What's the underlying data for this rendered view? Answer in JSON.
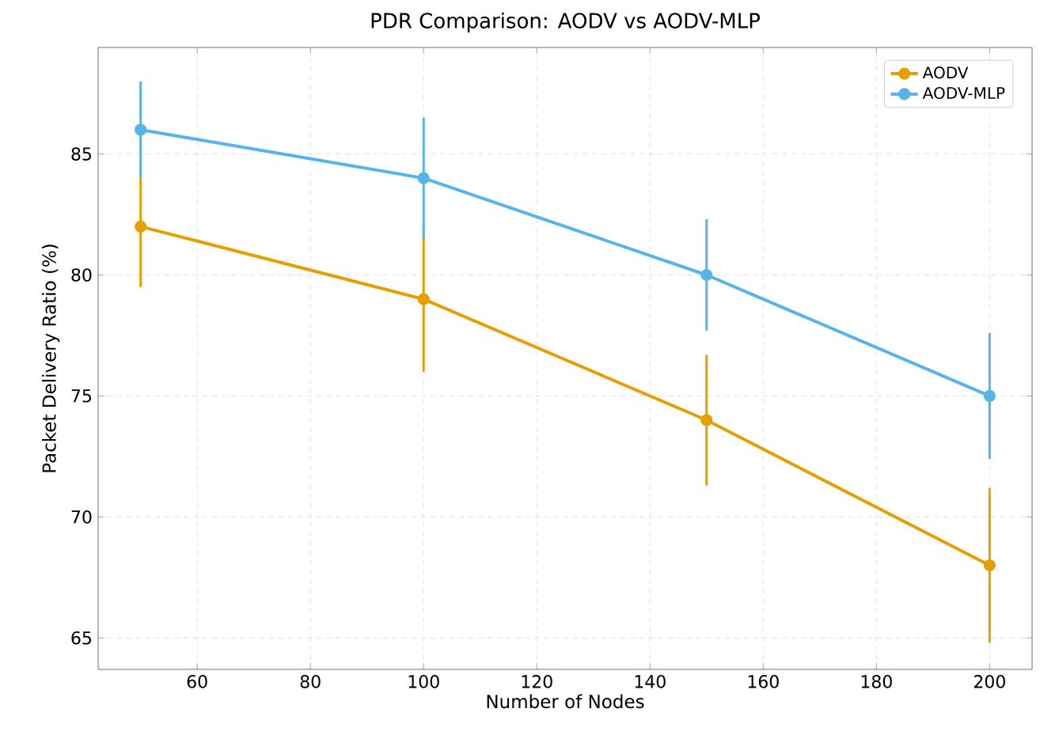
{
  "chart_data": {
    "type": "line",
    "title": "PDR Comparison: AODV vs AODV-MLP",
    "xlabel": "Number of Nodes",
    "ylabel": "Packet Delivery Ratio (%)",
    "x": [
      50,
      100,
      150,
      200
    ],
    "series": [
      {
        "name": "AODV",
        "color": "#e69f00",
        "values": [
          82,
          79,
          74,
          68
        ],
        "errors": [
          2.5,
          3,
          2.7,
          3.2
        ]
      },
      {
        "name": "AODV-MLP",
        "color": "#56b4e9",
        "values": [
          86,
          84,
          80,
          75
        ],
        "errors": [
          2,
          2.5,
          2.3,
          2.6
        ]
      }
    ],
    "xlim": [
      42.5,
      207.5
    ],
    "ylim": [
      63.7,
      89.4
    ],
    "xticks": [
      60,
      80,
      100,
      120,
      140,
      160,
      180,
      200
    ],
    "yticks": [
      65,
      70,
      75,
      80,
      85
    ],
    "grid": true,
    "legend": "top right",
    "marker": "circle",
    "line_style": "solid"
  }
}
